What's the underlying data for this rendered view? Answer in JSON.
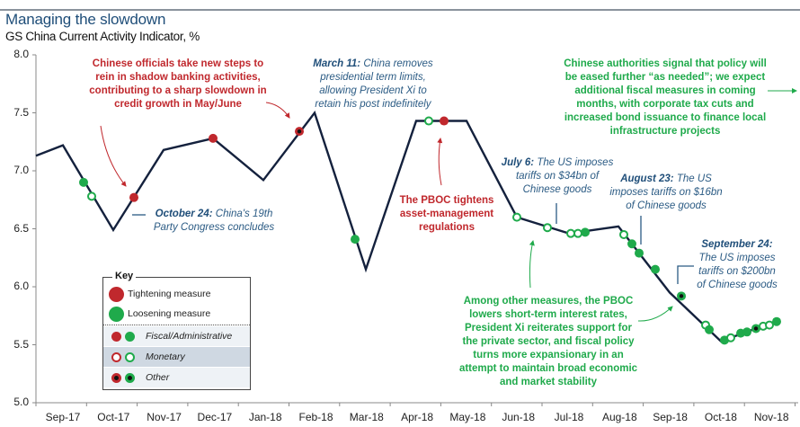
{
  "header": {
    "title": "Managing the slowdown",
    "subtitle": "GS China Current Activity Indicator, %"
  },
  "annotations": {
    "shadow_banking": [
      "Chinese officials take new steps to",
      "rein in shadow banking activities,",
      "contributing to a sharp slowdown in",
      "credit growth in May/June"
    ],
    "march11_bold": "March 11:",
    "march11_lines": [
      "China removes",
      "presidential term limits,",
      "allowing President Xi to",
      "retain his post indefinitely"
    ],
    "oct24_bold": "October 24:",
    "oct24_lines": [
      "China's 19th",
      "Party Congress concludes"
    ],
    "pboc_tightens": [
      "The PBOC tightens",
      "asset-management",
      "regulations"
    ],
    "july6_bold": "July 6:",
    "july6_lines": [
      "The US imposes",
      "tariffs on  $34bn of",
      "Chinese goods"
    ],
    "aug23_bold": "August 23:",
    "aug23_lines": [
      "The US",
      "imposes tariffs on  $16bn",
      "of Chinese goods"
    ],
    "sep24_bold": "September 24:",
    "sep24_lines": [
      "The US imposes",
      "tariffs on  $200bn",
      "of Chinese goods"
    ],
    "authorities_signal": [
      "Chinese authorities signal that policy will",
      "be eased further “as needed”; we expect",
      "additional fiscal measures in coming",
      "months, with corporate tax cuts and",
      "increased bond issuance to finance local",
      "infrastructure projects"
    ],
    "pboc_lowers": [
      "Among other measures, the PBOC",
      "lowers short-term interest rates,",
      "President Xi reiterates support for",
      "the private sector, and fiscal policy",
      "turns more expansionary  in an",
      "attempt to maintain broad economic",
      "and market stability"
    ]
  },
  "key": {
    "title": "Key",
    "tightening": "Tightening measure",
    "loosening": "Loosening measure",
    "fiscal": "Fiscal/Administrative",
    "monetary": "Monetary",
    "other": "Other"
  },
  "colors": {
    "tightening": "#c0282d",
    "loosening": "#1faa4b",
    "line": "#14213d",
    "axis": "#888888",
    "monetary_row_bg": "#cfd8e2",
    "key_row_bg": "#eef2f6"
  },
  "chart_data": {
    "type": "line",
    "title": "Managing the slowdown",
    "subtitle": "GS China Current Activity Indicator, %",
    "xlabel": "",
    "ylabel": "%",
    "ylim": [
      5.0,
      8.0
    ],
    "yticks": [
      "8.0",
      "7.5",
      "7.0",
      "6.5",
      "6.0",
      "5.5",
      "5.0"
    ],
    "categories": [
      "Sep-17",
      "Oct-17",
      "Nov-17",
      "Dec-17",
      "Jan-18",
      "Feb-18",
      "Mar-18",
      "Apr-18",
      "May-18",
      "Jun-18",
      "Jul-18",
      "Aug-18",
      "Sep-18",
      "Oct-18",
      "Nov-18"
    ],
    "series": [
      {
        "name": "GS China Current Activity Indicator",
        "x": [
          "Aug-17",
          "Sep-17",
          "Oct-17",
          "Nov-17",
          "Dec-17",
          "Jan-18",
          "Feb-18",
          "Mar-18",
          "Apr-18",
          "May-18",
          "Jun-18",
          "Jul-18",
          "Aug-18",
          "Sep-18",
          "Oct-18",
          "Nov-18"
        ],
        "values": [
          7.13,
          7.22,
          6.49,
          7.18,
          7.28,
          6.92,
          7.5,
          6.15,
          7.43,
          7.43,
          6.6,
          6.46,
          6.52,
          5.95,
          5.53,
          5.71
        ]
      }
    ],
    "markers": [
      {
        "date": "Sep-17",
        "value": 6.9,
        "type": "loosening",
        "category": "fiscal"
      },
      {
        "date": "Sep-17",
        "value": 6.78,
        "type": "loosening",
        "category": "monetary"
      },
      {
        "date": "Oct-17",
        "value": 6.77,
        "type": "tightening",
        "category": "fiscal"
      },
      {
        "date": "Dec-17",
        "value": 7.28,
        "type": "tightening",
        "category": "fiscal"
      },
      {
        "date": "Jan-18",
        "value": 7.34,
        "type": "tightening",
        "category": "other"
      },
      {
        "date": "Mar-18",
        "value": 6.41,
        "type": "loosening",
        "category": "fiscal"
      },
      {
        "date": "Apr-18",
        "value": 7.43,
        "type": "loosening",
        "category": "monetary"
      },
      {
        "date": "Apr-18",
        "value": 7.43,
        "type": "tightening",
        "category": "fiscal"
      },
      {
        "date": "Jun-18",
        "value": 6.6,
        "type": "loosening",
        "category": "monetary"
      },
      {
        "date": "Jun-18",
        "value": 6.51,
        "type": "loosening",
        "category": "monetary"
      },
      {
        "date": "Jul-18",
        "value": 6.46,
        "type": "loosening",
        "category": "monetary"
      },
      {
        "date": "Jul-18",
        "value": 6.46,
        "type": "loosening",
        "category": "monetary"
      },
      {
        "date": "Jul-18",
        "value": 6.47,
        "type": "loosening",
        "category": "fiscal"
      },
      {
        "date": "Aug-18",
        "value": 6.45,
        "type": "loosening",
        "category": "monetary"
      },
      {
        "date": "Aug-18",
        "value": 6.37,
        "type": "loosening",
        "category": "fiscal"
      },
      {
        "date": "Aug-18",
        "value": 6.29,
        "type": "loosening",
        "category": "fiscal"
      },
      {
        "date": "Aug-18",
        "value": 6.15,
        "type": "loosening",
        "category": "fiscal"
      },
      {
        "date": "Sep-18",
        "value": 5.92,
        "type": "loosening",
        "category": "other"
      },
      {
        "date": "Sep-18",
        "value": 5.67,
        "type": "loosening",
        "category": "monetary"
      },
      {
        "date": "Sep-18",
        "value": 5.63,
        "type": "loosening",
        "category": "fiscal"
      },
      {
        "date": "Oct-18",
        "value": 5.54,
        "type": "loosening",
        "category": "fiscal"
      },
      {
        "date": "Oct-18",
        "value": 5.56,
        "type": "loosening",
        "category": "monetary"
      },
      {
        "date": "Oct-18",
        "value": 5.6,
        "type": "loosening",
        "category": "fiscal"
      },
      {
        "date": "Oct-18",
        "value": 5.61,
        "type": "loosening",
        "category": "fiscal"
      },
      {
        "date": "Oct-18",
        "value": 5.64,
        "type": "loosening",
        "category": "other"
      },
      {
        "date": "Nov-18",
        "value": 5.66,
        "type": "loosening",
        "category": "monetary"
      },
      {
        "date": "Nov-18",
        "value": 5.67,
        "type": "loosening",
        "category": "monetary"
      },
      {
        "date": "Nov-18",
        "value": 5.7,
        "type": "loosening",
        "category": "fiscal"
      }
    ],
    "grid": false,
    "legend_position": "lower-left inside plot (Key box)"
  }
}
